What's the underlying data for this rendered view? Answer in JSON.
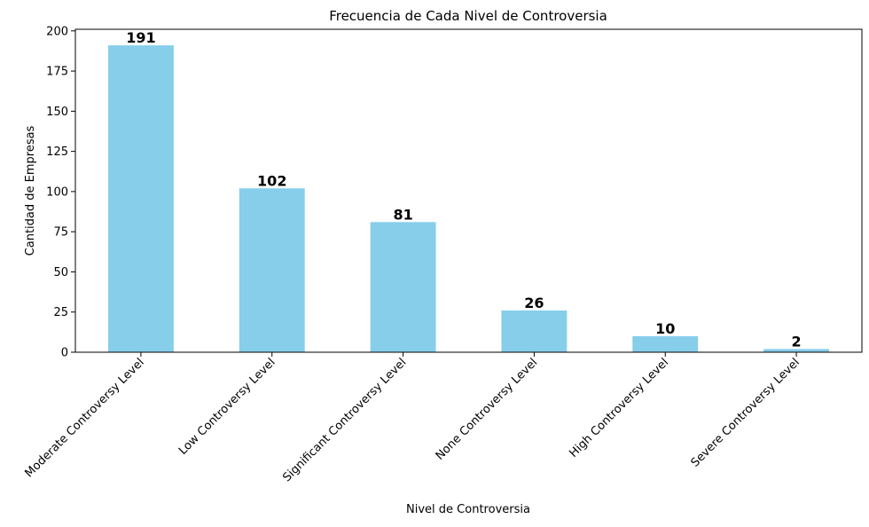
{
  "chart_data": {
    "type": "bar",
    "title": "Frecuencia de Cada Nivel de Controversia",
    "xlabel": "Nivel de Controversia",
    "ylabel": "Cantidad de Empresas",
    "categories": [
      "Moderate Controversy Level",
      "Low Controversy Level",
      "Significant Controversy Level",
      "None Controversy Level",
      "High Controversy Level",
      "Severe Controversy Level"
    ],
    "values": [
      191,
      102,
      81,
      26,
      10,
      2
    ],
    "value_labels": [
      "191",
      "102",
      "81",
      "26",
      "10",
      "2"
    ],
    "ylim": [
      0,
      201
    ],
    "yticks": [
      0,
      25,
      50,
      75,
      100,
      125,
      150,
      175,
      200
    ],
    "ytick_labels": [
      "0",
      "25",
      "50",
      "75",
      "100",
      "125",
      "150",
      "175",
      "200"
    ],
    "bar_color": "#87ceeb",
    "grid": false,
    "legend": "none"
  }
}
